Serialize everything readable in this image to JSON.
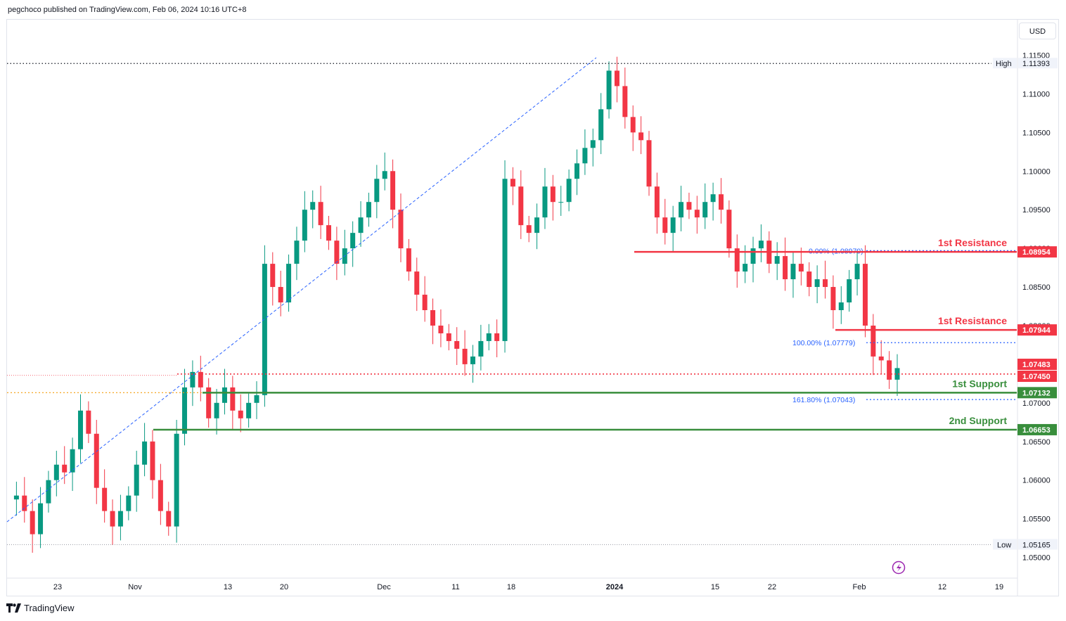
{
  "header": {
    "publisher_line": "pegchoco published on TradingView.com, Feb 06, 2024 10:16 UTC+8"
  },
  "toolbar": {
    "currency_button": "USD"
  },
  "footer": {
    "brand": "TradingView"
  },
  "colors": {
    "up": "#089981",
    "down": "#f23645",
    "resistance": "#f23645",
    "support": "#388e3c",
    "fib": "#2962ff",
    "grid_text": "#131722"
  },
  "chart_data": {
    "type": "candlestick",
    "symbol_currency": "USD",
    "y_axis": {
      "ylim": [
        1.0475,
        1.1165
      ],
      "ticks": [
        "1.11500",
        "1.11000",
        "1.10500",
        "1.10000",
        "1.09500",
        "1.09000",
        "1.08500",
        "1.08000",
        "1.07500",
        "1.07000",
        "1.06500",
        "1.06000",
        "1.05500",
        "1.05000"
      ]
    },
    "x_axis": {
      "ticks": [
        "23",
        "Nov",
        "13",
        "20",
        "Dec",
        "11",
        "18",
        "2024",
        "15",
        "22",
        "Feb",
        "12",
        "19"
      ]
    },
    "high_marker": {
      "label": "High",
      "value": "1.11393"
    },
    "low_marker": {
      "label": "Low",
      "value": "1.05165"
    },
    "levels": [
      {
        "name": "1st Resistance",
        "value": "1.08954",
        "color": "#f23645"
      },
      {
        "name": "1st Resistance",
        "value": "1.07944",
        "color": "#f23645"
      },
      {
        "name": "1st Support",
        "value": "1.07132",
        "color": "#388e3c"
      },
      {
        "name": "2nd Support",
        "value": "1.06653",
        "color": "#388e3c"
      }
    ],
    "price_tags": [
      {
        "value": "1.07483",
        "color": "#f23645"
      },
      {
        "value": "1.07450",
        "color": "#f23645"
      }
    ],
    "fib_labels": [
      {
        "text": "0.00% (1.08970)",
        "value": 1.0897
      },
      {
        "text": "100.00% (1.07779)",
        "value": 1.07779
      },
      {
        "text": "161.80% (1.07043)",
        "value": 1.07043
      }
    ],
    "series": [
      {
        "name": "",
        "close_path": [
          1.0575,
          1.058,
          1.056,
          1.053,
          1.057,
          1.06,
          1.062,
          1.061,
          1.064,
          1.069,
          1.066,
          1.059,
          1.056,
          1.054,
          1.056,
          1.058,
          1.062,
          1.065,
          1.06,
          1.056,
          1.054,
          1.066,
          1.072,
          1.074,
          1.072,
          1.068,
          1.07,
          1.072,
          1.069,
          1.068,
          1.07,
          1.071,
          1.088,
          1.085,
          1.083,
          1.088,
          1.091,
          1.095,
          1.096,
          1.093,
          1.091,
          1.088,
          1.09,
          1.092,
          1.094,
          1.096,
          1.099,
          1.1,
          1.095,
          1.09,
          1.087,
          1.084,
          1.082,
          1.08,
          1.079,
          1.078,
          1.077,
          1.075,
          1.076,
          1.078,
          1.079,
          1.078,
          1.099,
          1.098,
          1.093,
          1.092,
          1.094,
          1.098,
          1.096,
          1.096,
          1.099,
          1.101,
          1.103,
          1.104,
          1.108,
          1.113,
          1.111,
          1.107,
          1.105,
          1.104,
          1.098,
          1.094,
          1.092,
          1.094,
          1.096,
          1.095,
          1.094,
          1.096,
          1.097,
          1.095,
          1.09,
          1.087,
          1.088,
          1.09,
          1.091,
          1.088,
          1.089,
          1.086,
          1.088,
          1.087,
          1.085,
          1.086,
          1.085,
          1.082,
          1.083,
          1.086,
          1.088,
          1.08,
          1.076,
          1.0755,
          1.073,
          1.0745
        ]
      }
    ]
  }
}
